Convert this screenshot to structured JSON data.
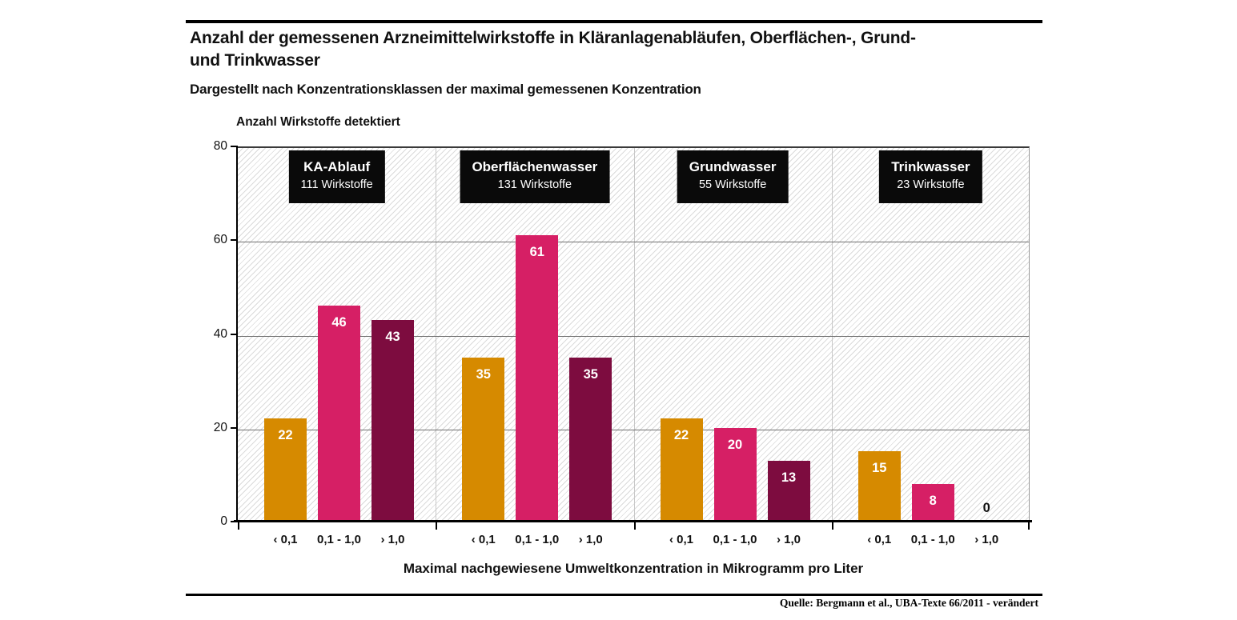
{
  "header": {
    "title_lines": [
      "Anzahl der gemessenen Arzneimittelwirkstoffe in Kläranlagenabläufen, Oberflächen-, Grund-",
      "und Trinkwasser"
    ],
    "subtitle": "Dargestellt nach Konzentrationsklassen der maximal gemessenen Konzentration"
  },
  "chart_data": {
    "type": "bar",
    "y_axis_title": "Anzahl Wirkstoffe detektiert",
    "x_axis_title": "Maximal nachgewiesene Umweltkonzentration in Mikrogramm pro Liter",
    "ylim": [
      0,
      80
    ],
    "yticks": [
      0,
      20,
      40,
      60,
      80
    ],
    "gridline_values": [
      20,
      40,
      60
    ],
    "grid": "horizontal gridlines plus vertical group dividers, hatched plot background",
    "legend_position": "none",
    "categories": [
      "‹ 0,1",
      "0,1 - 1,0",
      "› 1,0"
    ],
    "bar_colors": [
      "#D68A00",
      "#D61F65",
      "#7D0C3F"
    ],
    "groups": [
      {
        "label": "KA-Ablauf",
        "sublabel": "111 Wirkstoffe",
        "values": [
          22,
          46,
          43
        ]
      },
      {
        "label": "Oberflächenwasser",
        "sublabel": "131 Wirkstoffe",
        "values": [
          35,
          61,
          35
        ]
      },
      {
        "label": "Grundwasser",
        "sublabel": "55 Wirkstoffe",
        "values": [
          22,
          20,
          13
        ]
      },
      {
        "label": "Trinkwasser",
        "sublabel": "23 Wirkstoffe",
        "values": [
          15,
          8,
          0
        ]
      }
    ]
  },
  "footer": {
    "source": "Quelle: Bergmann et al., UBA-Texte 66/2011 - verändert"
  },
  "colors": {
    "rule": "#000000",
    "group_box_bg": "#0a0a0a",
    "group_box_text": "#ffffff",
    "gridline": "#707070",
    "divider": "#c8c8c8",
    "hatch_line": "#dadada"
  }
}
